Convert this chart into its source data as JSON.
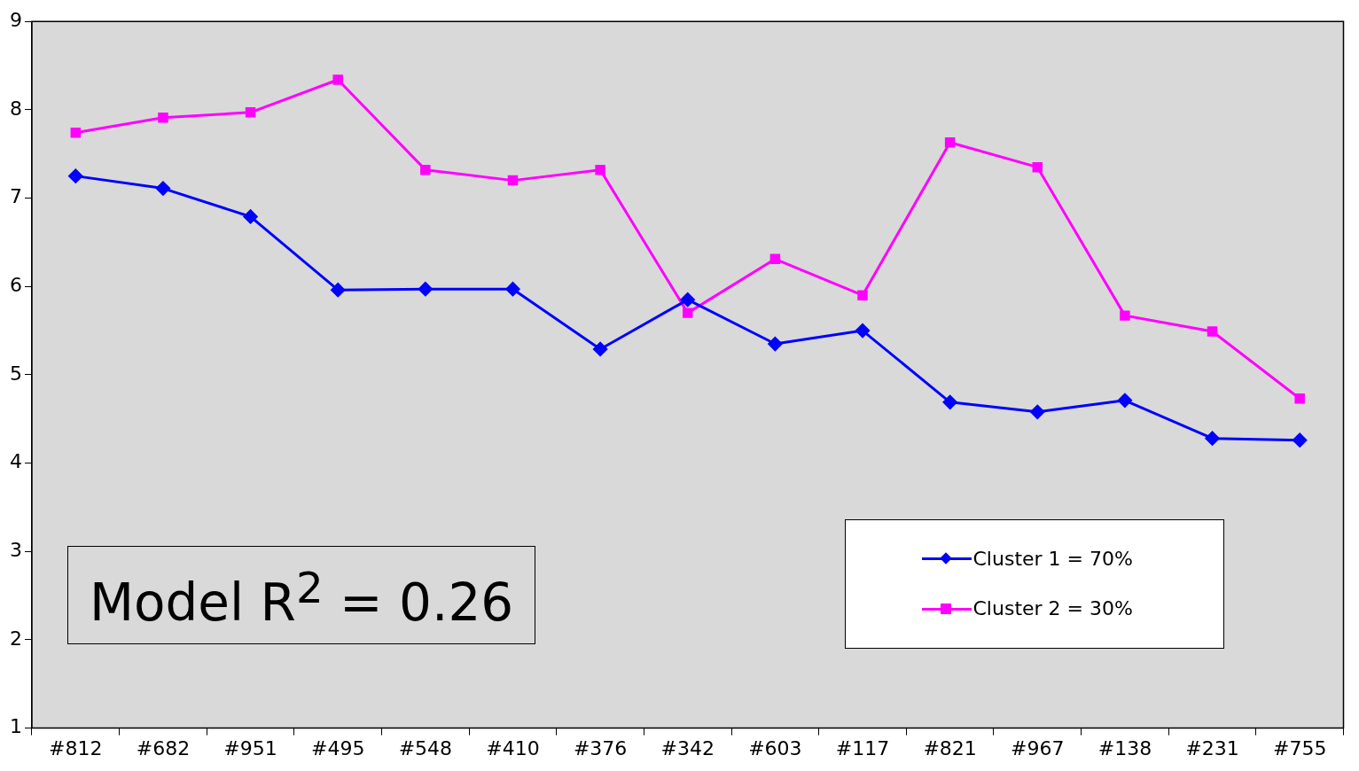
{
  "chart_data": {
    "type": "line",
    "categories": [
      "#812",
      "#682",
      "#951",
      "#495",
      "#548",
      "#410",
      "#376",
      "#342",
      "#603",
      "#117",
      "#821",
      "#967",
      "#138",
      "#231",
      "#755"
    ],
    "series": [
      {
        "name": "Cluster 1 = 70%",
        "color": "#0000ff",
        "marker": "diamond",
        "values": [
          7.25,
          7.11,
          6.79,
          5.96,
          5.97,
          5.97,
          5.29,
          5.85,
          5.35,
          5.5,
          4.69,
          4.58,
          4.71,
          4.28,
          4.26
        ]
      },
      {
        "name": "Cluster 2 = 30%",
        "color": "#ff00ff",
        "marker": "square",
        "values": [
          7.74,
          7.91,
          7.97,
          8.34,
          7.32,
          7.2,
          7.32,
          5.7,
          6.31,
          5.9,
          7.63,
          7.35,
          5.67,
          5.49,
          4.73
        ]
      }
    ],
    "ylim": [
      1,
      9
    ],
    "yticks": [
      1,
      2,
      3,
      4,
      5,
      6,
      7,
      8,
      9
    ],
    "grid": false,
    "legend": "bottom right",
    "line_style": "solid",
    "annotations": [
      "Model R$^{2}$ = 0.26"
    ]
  }
}
